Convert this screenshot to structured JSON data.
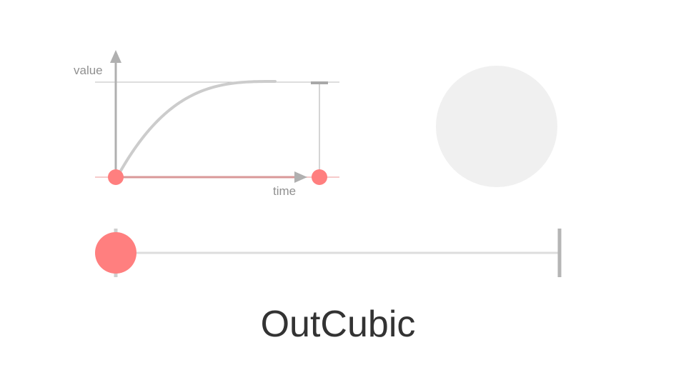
{
  "easing": {
    "name": "OutCubic"
  },
  "graph": {
    "value_label": "value",
    "time_label": "time"
  },
  "progress": {
    "time_fraction": 0.0,
    "value_fraction": 0.0
  },
  "colors": {
    "accent": "#ff7f7f",
    "curve": "#cccccc",
    "axis": "#b0b0b0",
    "track": "#dddddd",
    "preview_circle": "#f0f0f0",
    "title": "#333333"
  }
}
